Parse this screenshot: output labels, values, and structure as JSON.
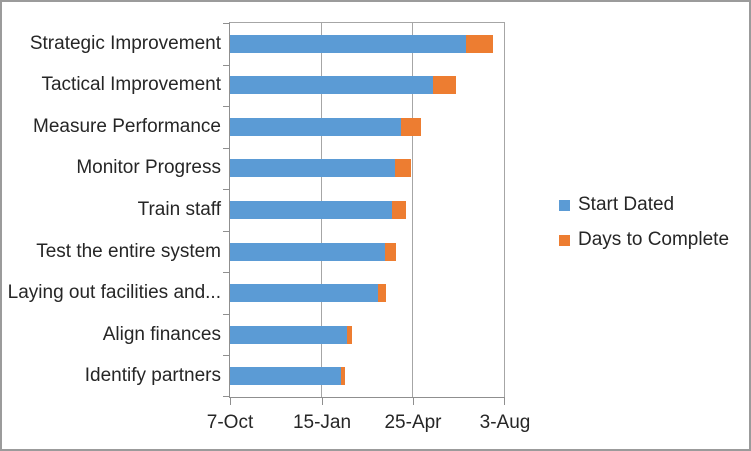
{
  "chart": {
    "background_color": "#FFFFFF",
    "border_color": "#9B9B9B",
    "axis_line_color": "#8F8F8F",
    "gridline_color": "#A6A6A6",
    "text_color": "#262626"
  },
  "chart_data": {
    "type": "bar",
    "orientation": "horizontal",
    "stacked": true,
    "title": "",
    "xlabel": "",
    "ylabel": "",
    "grid": true,
    "categories": [
      "Strategic Improvement",
      "Tactical Improvement",
      "Measure Performance",
      "Monitor Progress",
      "Train staff",
      "Test the entire system",
      "Laying out facilities and...",
      "Align finances",
      "Identify partners"
    ],
    "series": [
      {
        "name": "Start Dated",
        "color": "#5B9BD5",
        "unit": "days offset from 7-Oct",
        "values": [
          257,
          221,
          187,
          180,
          177,
          169,
          161,
          128,
          121
        ]
      },
      {
        "name": "Days to Complete",
        "color": "#ED7D31",
        "unit": "days",
        "values": [
          30,
          26,
          21,
          17,
          15,
          12,
          9,
          5,
          4
        ]
      }
    ],
    "x_axis": {
      "tick_labels": [
        "7-Oct",
        "15-Jan",
        "25-Apr",
        "3-Aug"
      ],
      "min_days": 0,
      "max_days": 300,
      "major_unit_days": 100
    },
    "legend": {
      "position": "right",
      "entries": [
        "Start Dated",
        "Days to Complete"
      ]
    }
  }
}
